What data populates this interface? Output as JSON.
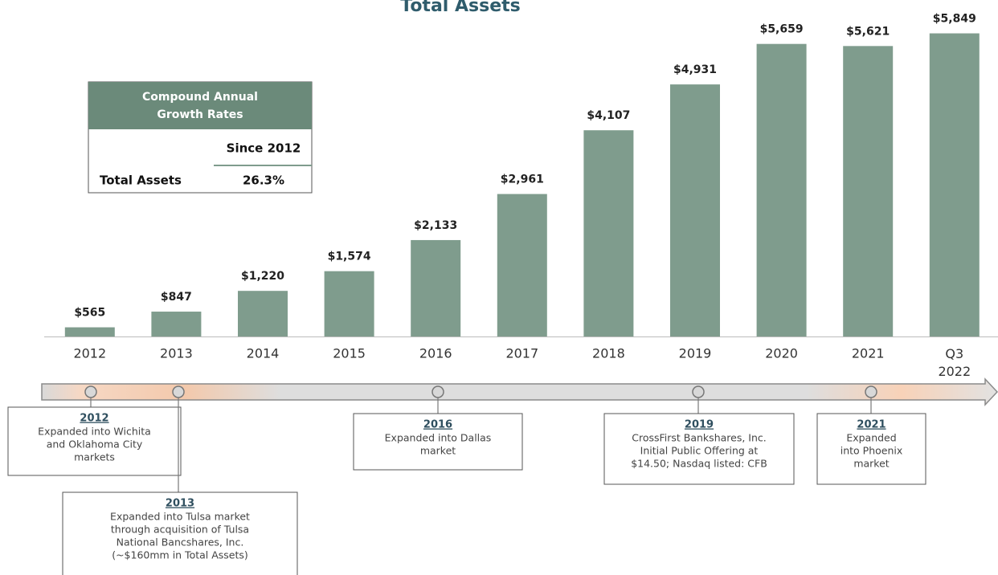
{
  "chart_data": {
    "type": "bar",
    "title": "Total Assets",
    "categories": [
      "2012",
      "2013",
      "2014",
      "2015",
      "2016",
      "2017",
      "2018",
      "2019",
      "2020",
      "2021",
      "Q3 2022"
    ],
    "values": [
      565,
      847,
      1220,
      1574,
      2133,
      2961,
      4107,
      4931,
      5659,
      5621,
      5849
    ],
    "value_labels": [
      "$565",
      "$847",
      "$1,220",
      "$1,574",
      "$2,133",
      "$2,961",
      "$4,107",
      "$4,931",
      "$5,659",
      "$5,621",
      "$5,849"
    ],
    "color": "#7f9c8d",
    "ylim": [
      400,
      5900
    ]
  },
  "cagr_table": {
    "title": [
      "Compound Annual",
      "Growth Rates"
    ],
    "column": "Since 2012",
    "row_label": "Total Assets",
    "value": "26.3%"
  },
  "milestones": [
    {
      "year": "2012",
      "lines": [
        "Expanded into Wichita",
        "and Oklahoma City",
        "markets"
      ]
    },
    {
      "year": "2013",
      "lines": [
        "Expanded into Tulsa market",
        "through acquisition of Tulsa",
        "National Bancshares, Inc.",
        "(~$160mm in Total Assets)"
      ]
    },
    {
      "year": "2016",
      "lines": [
        "Expanded into Dallas",
        "market"
      ]
    },
    {
      "year": "2019",
      "lines": [
        "CrossFirst Bankshares, Inc.",
        "Initial Public Offering at",
        "$14.50; Nasdaq listed: CFB"
      ]
    },
    {
      "year": "2021",
      "lines": [
        "Expanded",
        "into Phoenix",
        "market"
      ]
    }
  ]
}
